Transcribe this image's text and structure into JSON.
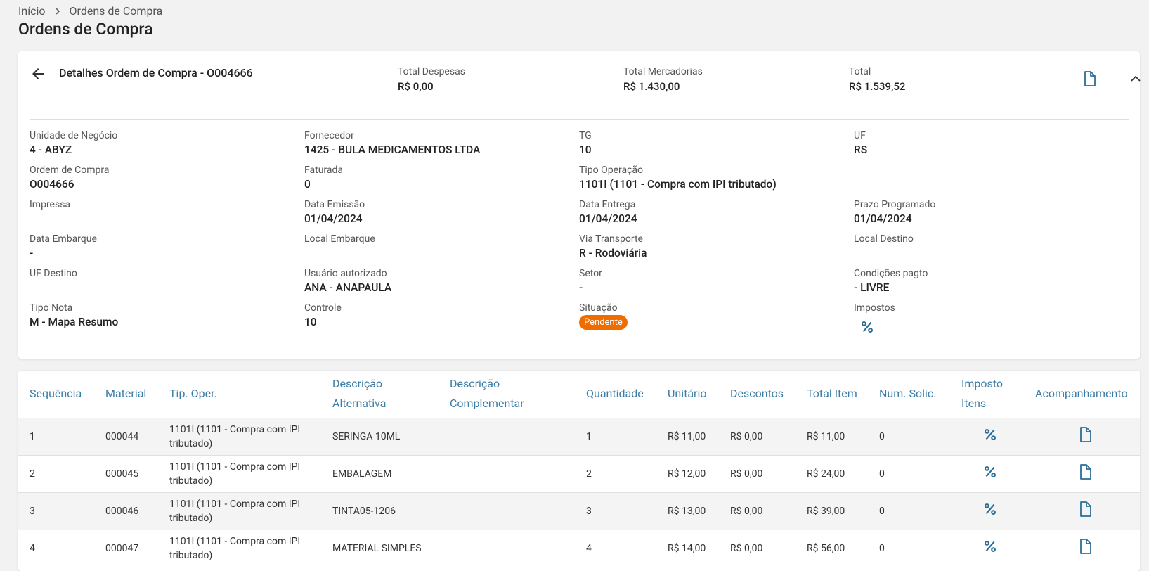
{
  "breadcrumb": [
    "Início",
    "Ordens de Compra"
  ],
  "title": "Ordens de Compra",
  "card": {
    "heading": "Detalhes Ordem de Compra - O004666",
    "totals": [
      {
        "label": "Total Despesas",
        "value": "R$ 0,00"
      },
      {
        "label": "Total Mercadorias",
        "value": "R$ 1.430,00"
      },
      {
        "label": "Total",
        "value": "R$ 1.539,52"
      }
    ]
  },
  "fields": [
    [
      {
        "label": "Unidade de Negócio",
        "value": "4 - ABYZ"
      },
      {
        "label": "Fornecedor",
        "value": "1425 - BULA MEDICAMENTOS LTDA"
      },
      {
        "label": "TG",
        "value": "10"
      },
      {
        "label": "UF",
        "value": "RS"
      }
    ],
    [
      {
        "label": "Ordem de Compra",
        "value": "O004666"
      },
      {
        "label": "Faturada",
        "value": "0"
      },
      {
        "label": "Tipo Operação",
        "value": "1101I (1101 - Compra com IPI tributado)"
      }
    ],
    [
      {
        "label": "Impressa"
      },
      {
        "label": "Data Emissão",
        "value": "01/04/2024"
      },
      {
        "label": "Data Entrega",
        "value": "01/04/2024"
      },
      {
        "label": "Prazo Programado",
        "value": "01/04/2024"
      }
    ],
    [
      {
        "label": "Data Embarque",
        "value": "-"
      },
      {
        "label": "Local Embarque"
      },
      {
        "label": "Via Transporte",
        "value": "R - Rodoviária"
      },
      {
        "label": "Local Destino"
      }
    ],
    [
      {
        "label": "UF Destino"
      },
      {
        "label": "Usuário autorizado",
        "value": "ANA - ANAPAULA"
      },
      {
        "label": "Setor",
        "value": "-"
      },
      {
        "label": "Condições pagto",
        "value": "- LIVRE"
      }
    ],
    [
      {
        "label": "Tipo Nota",
        "value": "M - Mapa Resumo"
      },
      {
        "label": "Controle",
        "value": "10"
      },
      {
        "label": "Situação",
        "status": "Pendente"
      },
      {
        "label": "Impostos",
        "icon": "percent"
      }
    ]
  ],
  "table": {
    "columns": [
      "Sequência",
      "Material",
      "Tip. Oper.",
      "Descrição Alternativa",
      "Descrição Complementar",
      "Quantidade",
      "Unitário",
      "Descontos",
      "Total Item",
      "Num. Solic.",
      "Imposto Itens",
      "Acompanhamento"
    ],
    "rows": [
      [
        "1",
        "000044",
        "1101I (1101 - Compra com IPI tributado)",
        "SERINGA 10ML",
        null,
        "1",
        "R$ 11,00",
        "R$ 0,00",
        "R$ 11,00",
        "0"
      ],
      [
        "2",
        "000045",
        "1101I (1101 - Compra com IPI tributado)",
        "EMBALAGEM",
        null,
        "2",
        "R$ 12,00",
        "R$ 0,00",
        "R$ 24,00",
        "0"
      ],
      [
        "3",
        "000046",
        "1101I (1101 - Compra com IPI tributado)",
        "TINTA05-1206",
        null,
        "3",
        "R$ 13,00",
        "R$ 0,00",
        "R$ 39,00",
        "0"
      ],
      [
        "4",
        "000047",
        "1101I (1101 - Compra com IPI tributado)",
        "MATERIAL SIMPLES",
        null,
        "4",
        "R$ 14,00",
        "R$ 0,00",
        "R$ 56,00",
        "0"
      ]
    ]
  }
}
